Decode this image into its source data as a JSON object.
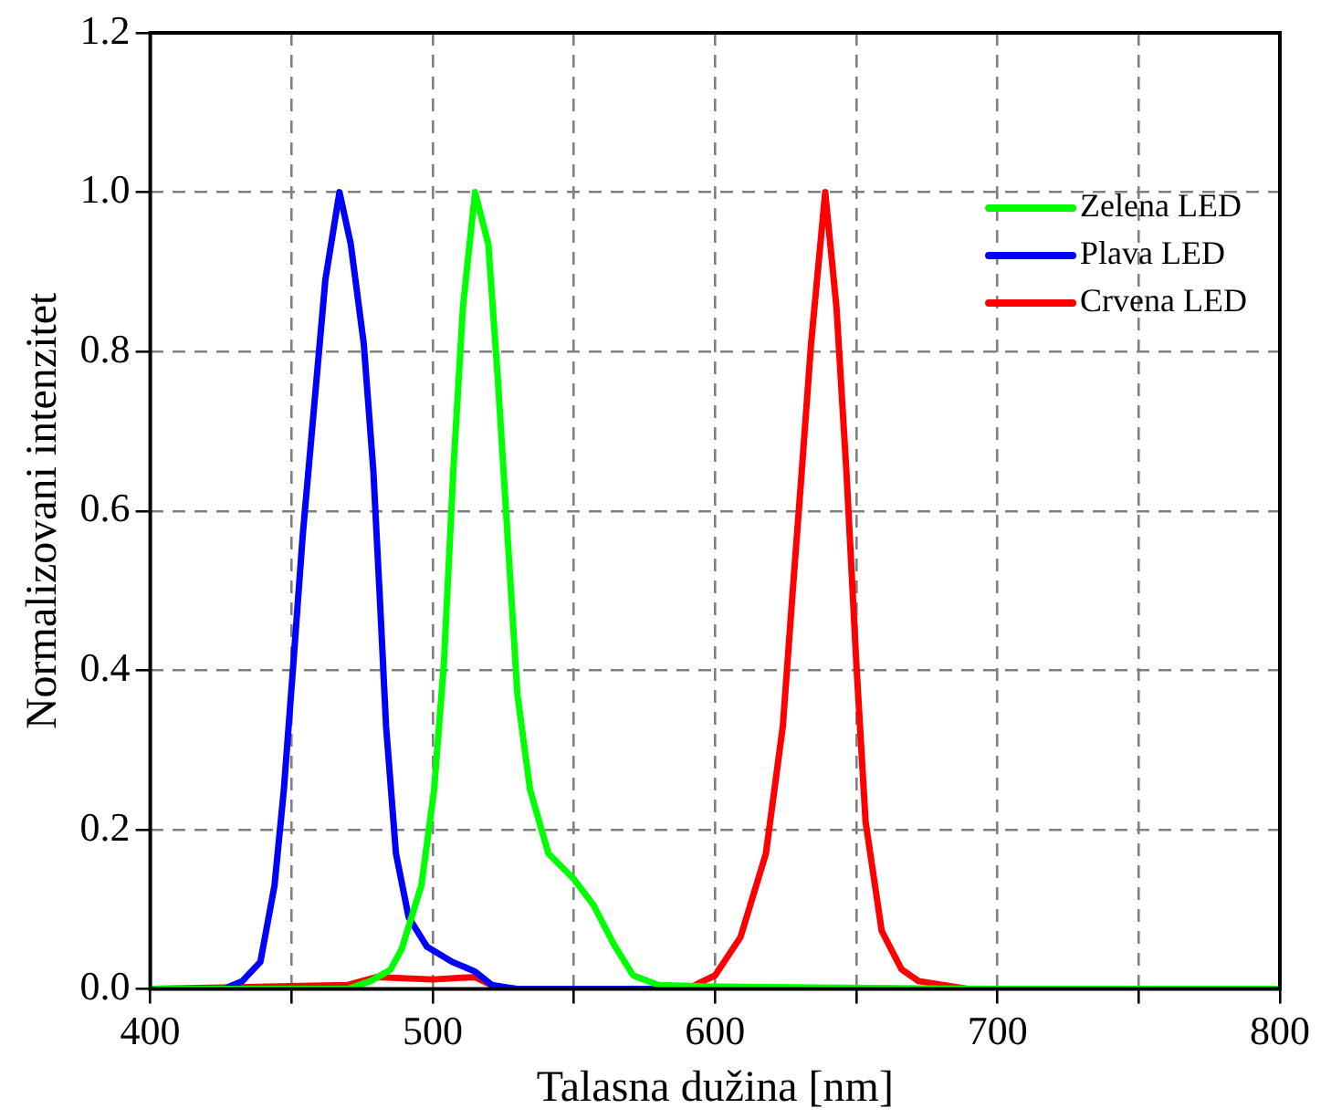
{
  "chart_data": {
    "type": "line",
    "xlabel": "Talasna dužina [nm]",
    "ylabel": "Normalizovani intenzitet",
    "xlim": [
      400,
      800
    ],
    "xticks": [
      400,
      {
        "value": 450,
        "label": null
      },
      500,
      {
        "value": 550,
        "label": null
      },
      600,
      {
        "value": 650,
        "label": null
      },
      700,
      {
        "value": 750,
        "label": null
      },
      800
    ],
    "ylim": [
      0,
      1.2
    ],
    "yticks": [
      {
        "value": 0,
        "label": "0.0"
      },
      0.2,
      0.4,
      0.6,
      0.8,
      {
        "value": 1,
        "label": "1.0"
      },
      1.2
    ],
    "grid": true,
    "legend": "top right",
    "marker": "none",
    "line_style": "solid",
    "series": [
      {
        "name": "Zelena LED",
        "color": "#00ff00",
        "x": [
          400,
          470,
          478,
          485,
          489,
          496,
          500.5,
          504,
          507.3,
          510.7,
          515,
          519.7,
          523,
          526.5,
          530,
          534.5,
          541,
          550,
          557,
          564,
          571,
          580,
          600,
          700,
          800
        ],
        "values": [
          0,
          0,
          0.01,
          0.024,
          0.05,
          0.13,
          0.25,
          0.41,
          0.65,
          0.855,
          1.0,
          0.935,
          0.77,
          0.57,
          0.37,
          0.25,
          0.17,
          0.138,
          0.105,
          0.057,
          0.017,
          0.005,
          0.003,
          0,
          0
        ]
      },
      {
        "name": "Plava LED",
        "color": "#0000ff",
        "x": [
          400,
          426,
          432.6,
          439,
          444,
          447.3,
          450.7,
          454,
          458,
          462,
          467,
          471,
          475.6,
          479,
          481.3,
          483.5,
          487,
          491.5,
          498,
          507,
          515,
          521,
          530,
          600,
          800
        ],
        "values": [
          0,
          0,
          0.01,
          0.034,
          0.13,
          0.25,
          0.41,
          0.57,
          0.73,
          0.89,
          1.0,
          0.935,
          0.81,
          0.65,
          0.49,
          0.33,
          0.17,
          0.09,
          0.053,
          0.034,
          0.022,
          0.005,
          0,
          0,
          0
        ]
      },
      {
        "name": "Crvena LED",
        "color": "#ff0000",
        "x": [
          400,
          470,
          480,
          500,
          515,
          522,
          530,
          590,
          600,
          609,
          618,
          624,
          627.3,
          630.7,
          634,
          639,
          643,
          646.5,
          650,
          653.3,
          659,
          666,
          672,
          690,
          800
        ],
        "values": [
          0,
          0.005,
          0.015,
          0.012,
          0.015,
          0.003,
          0,
          0,
          0.017,
          0.065,
          0.17,
          0.33,
          0.49,
          0.65,
          0.81,
          1.0,
          0.855,
          0.65,
          0.41,
          0.21,
          0.073,
          0.025,
          0.01,
          0,
          0
        ]
      }
    ]
  }
}
